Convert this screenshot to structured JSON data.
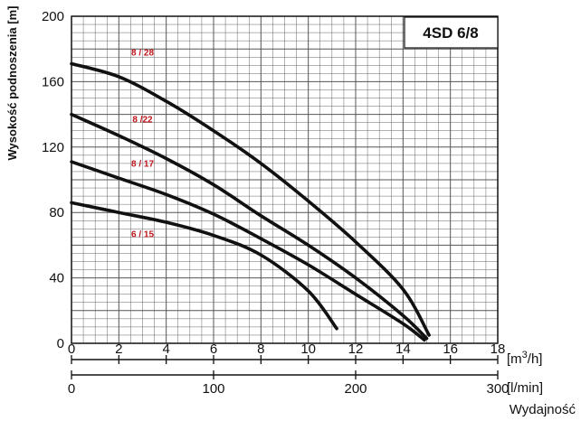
{
  "chart_data": {
    "type": "line",
    "title": "4SD 6/8",
    "xlabel": "Wydajność",
    "ylabel": "Wysokość podnoszenia [m]",
    "x_unit": "[m³/h]",
    "x2_unit": "[l/min]",
    "xlim": [
      0,
      18
    ],
    "ylim": [
      0,
      200
    ],
    "x2lim": [
      0,
      300
    ],
    "x_ticks": [
      0,
      2,
      4,
      6,
      8,
      10,
      12,
      14,
      16,
      18
    ],
    "y_ticks": [
      0,
      40,
      80,
      120,
      160,
      200
    ],
    "x2_ticks": [
      0,
      100,
      200,
      300
    ],
    "grid": true,
    "series": [
      {
        "name": "8 / 28",
        "x": [
          0,
          2,
          4,
          6,
          8,
          10,
          12,
          14,
          15.1
        ],
        "y": [
          171,
          163,
          148,
          130,
          110,
          87,
          62,
          33,
          5
        ]
      },
      {
        "name": "8 /22",
        "x": [
          0,
          2,
          4,
          6,
          8,
          10,
          12,
          14,
          15.0
        ],
        "y": [
          140,
          127,
          113,
          97,
          78,
          60,
          40,
          17,
          3
        ]
      },
      {
        "name": "8 / 17",
        "x": [
          0,
          2,
          4,
          6,
          8,
          10,
          12,
          14,
          14.9
        ],
        "y": [
          111,
          101,
          91,
          79,
          64,
          48,
          30,
          12,
          2
        ]
      },
      {
        "name": "6 / 15",
        "x": [
          0,
          2,
          4,
          6,
          8,
          10,
          11.2
        ],
        "y": [
          86,
          80,
          74,
          66,
          54,
          32,
          9
        ]
      }
    ]
  },
  "styles": {
    "line_color": "#111111",
    "label_color": "#c0161b",
    "grid_color": "#555555"
  }
}
